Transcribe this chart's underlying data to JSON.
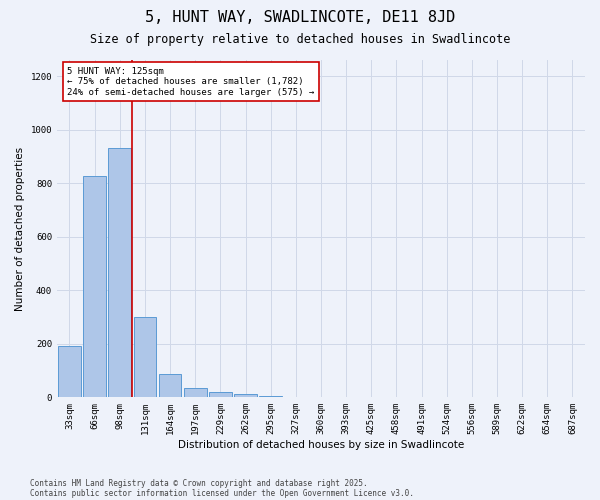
{
  "title1": "5, HUNT WAY, SWADLINCOTE, DE11 8JD",
  "title2": "Size of property relative to detached houses in Swadlincote",
  "xlabel": "Distribution of detached houses by size in Swadlincote",
  "ylabel": "Number of detached properties",
  "categories": [
    "33sqm",
    "66sqm",
    "98sqm",
    "131sqm",
    "164sqm",
    "197sqm",
    "229sqm",
    "262sqm",
    "295sqm",
    "327sqm",
    "360sqm",
    "393sqm",
    "425sqm",
    "458sqm",
    "491sqm",
    "524sqm",
    "556sqm",
    "589sqm",
    "622sqm",
    "654sqm",
    "687sqm"
  ],
  "values": [
    193,
    825,
    930,
    300,
    88,
    35,
    20,
    13,
    5,
    3,
    2,
    1,
    1,
    1,
    0,
    0,
    0,
    0,
    0,
    0,
    0
  ],
  "bar_color": "#aec6e8",
  "bar_edge_color": "#5b9bd5",
  "grid_color": "#d0d8e8",
  "background_color": "#eef2fa",
  "vline_color": "#cc0000",
  "annotation_text": "5 HUNT WAY: 125sqm\n← 75% of detached houses are smaller (1,782)\n24% of semi-detached houses are larger (575) →",
  "annotation_box_color": "#ffffff",
  "annotation_box_edge": "#cc0000",
  "footer1": "Contains HM Land Registry data © Crown copyright and database right 2025.",
  "footer2": "Contains public sector information licensed under the Open Government Licence v3.0.",
  "ylim": [
    0,
    1260
  ],
  "yticks": [
    0,
    200,
    400,
    600,
    800,
    1000,
    1200
  ],
  "title1_fontsize": 11,
  "title2_fontsize": 8.5,
  "xlabel_fontsize": 7.5,
  "ylabel_fontsize": 7.5,
  "tick_fontsize": 6.5,
  "annot_fontsize": 6.5,
  "footer_fontsize": 5.5
}
